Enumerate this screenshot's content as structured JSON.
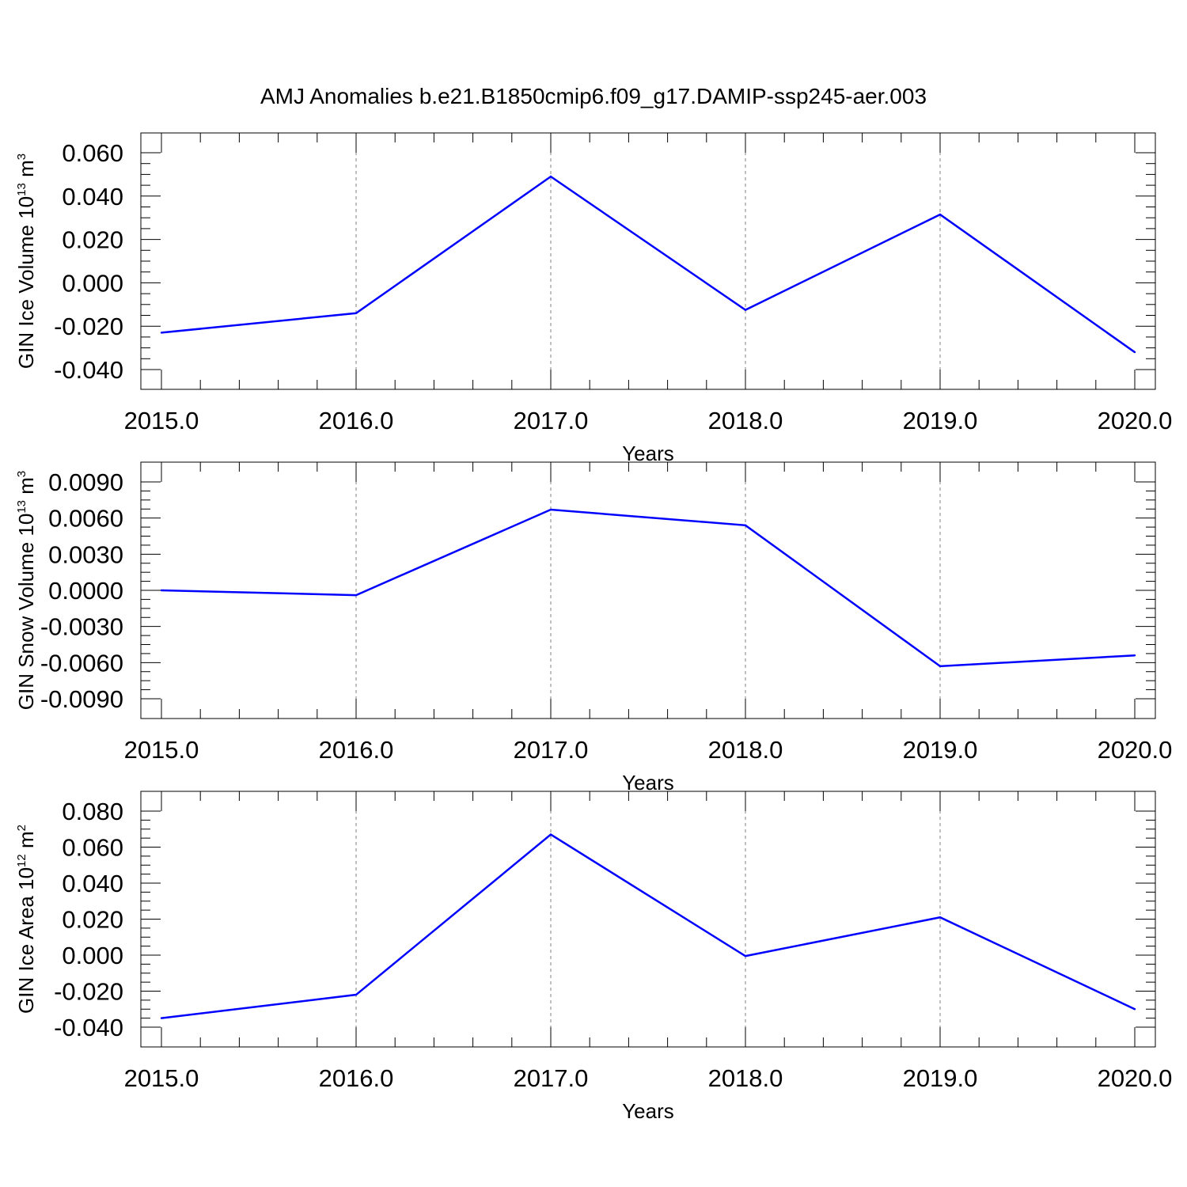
{
  "figure": {
    "title": "AMJ Anomalies b.e21.B1850cmip6.f09_g17.DAMIP-ssp245-aer.003"
  },
  "style": {
    "line_color": "#0000ff",
    "axis_color": "#000000",
    "grid_color": "#808080"
  },
  "chart_data": [
    {
      "type": "line",
      "title": "",
      "xlabel": "Years",
      "ylabel": {
        "main": "GIN Ice Volume 10",
        "exp": "13",
        "unit": " m",
        "unit_exp": "3"
      },
      "x": [
        2015,
        2016,
        2017,
        2018,
        2019,
        2020
      ],
      "xticks": [
        "2015.0",
        "2016.0",
        "2017.0",
        "2018.0",
        "2019.0",
        "2020.0"
      ],
      "xlim": [
        2015,
        2020
      ],
      "ylim": [
        -0.04,
        0.06
      ],
      "yticks": [
        -0.04,
        -0.02,
        0.0,
        0.02,
        0.04,
        0.06
      ],
      "ytick_labels": [
        "-0.040",
        "-0.020",
        "0.000",
        "0.020",
        "0.040",
        "0.060"
      ],
      "grid": "vertical dashed at major x ticks",
      "series": [
        {
          "values": [
            -0.023,
            -0.014,
            0.049,
            -0.0125,
            0.0315,
            -0.032
          ]
        }
      ]
    },
    {
      "type": "line",
      "title": "",
      "xlabel": "Years",
      "ylabel": {
        "main": "GIN Snow Volume 10",
        "exp": "13",
        "unit": " m",
        "unit_exp": "3"
      },
      "x": [
        2015,
        2016,
        2017,
        2018,
        2019,
        2020
      ],
      "xticks": [
        "2015.0",
        "2016.0",
        "2017.0",
        "2018.0",
        "2019.0",
        "2020.0"
      ],
      "xlim": [
        2015,
        2020
      ],
      "ylim": [
        -0.009,
        0.009
      ],
      "yticks": [
        -0.009,
        -0.006,
        -0.003,
        0.0,
        0.003,
        0.006,
        0.009
      ],
      "ytick_labels": [
        "-0.0090",
        "-0.0060",
        "-0.0030",
        "0.0000",
        "0.0030",
        "0.0060",
        "0.0090"
      ],
      "grid": "vertical dashed at major x ticks",
      "series": [
        {
          "values": [
            0.0,
            -0.0004,
            0.0067,
            0.0054,
            -0.0063,
            -0.0054
          ]
        }
      ]
    },
    {
      "type": "line",
      "title": "",
      "xlabel": "Years",
      "ylabel": {
        "main": "GIN Ice Area 10",
        "exp": "12",
        "unit": " m",
        "unit_exp": "2"
      },
      "x": [
        2015,
        2016,
        2017,
        2018,
        2019,
        2020
      ],
      "xticks": [
        "2015.0",
        "2016.0",
        "2017.0",
        "2018.0",
        "2019.0",
        "2020.0"
      ],
      "xlim": [
        2015,
        2020
      ],
      "ylim": [
        -0.04,
        0.08
      ],
      "yticks": [
        -0.04,
        -0.02,
        0.0,
        0.02,
        0.04,
        0.06,
        0.08
      ],
      "ytick_labels": [
        "-0.040",
        "-0.020",
        "0.000",
        "0.020",
        "0.040",
        "0.060",
        "0.080"
      ],
      "grid": "vertical dashed at major x ticks",
      "series": [
        {
          "values": [
            -0.035,
            -0.022,
            0.067,
            -0.0005,
            0.021,
            -0.03
          ]
        }
      ]
    }
  ]
}
